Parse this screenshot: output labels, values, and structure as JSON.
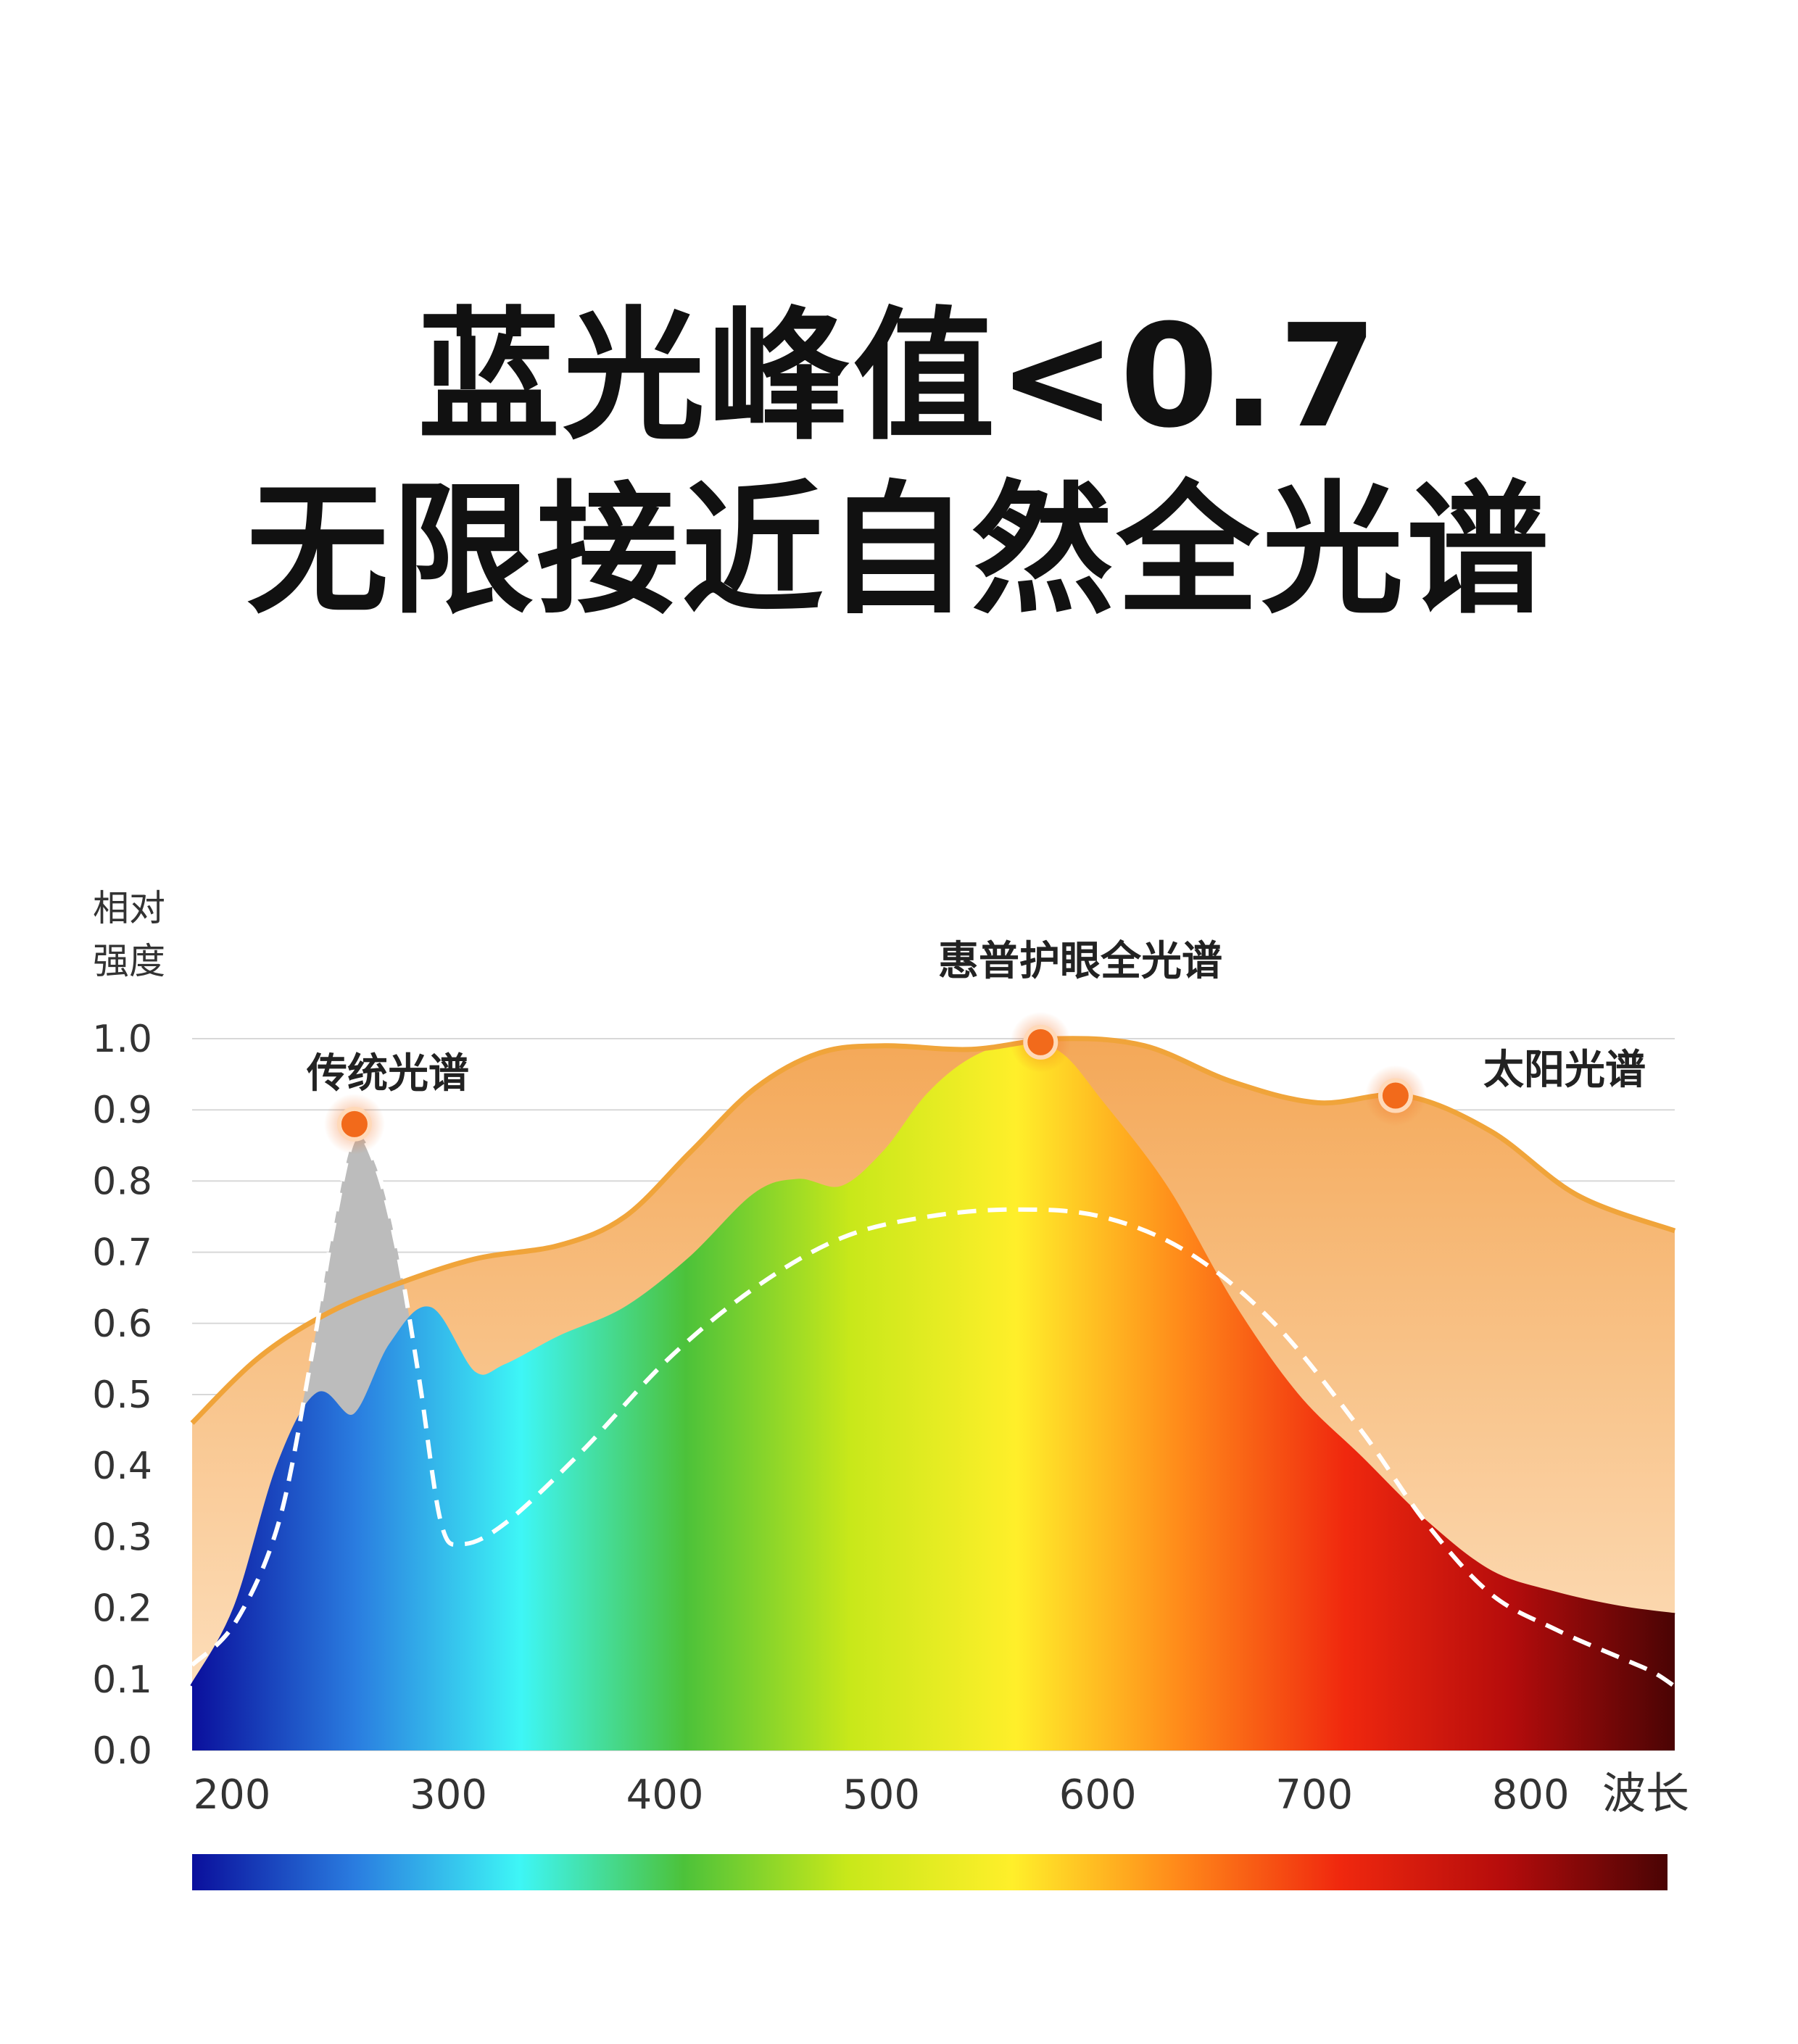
{
  "headline": {
    "line1": "蓝光峰值<0.7",
    "line2": "无限接近自然全光谱"
  },
  "chart_data": {
    "type": "area",
    "ylabel_line1": "相对",
    "ylabel_line2": "强度",
    "xlabel": "波长",
    "yticks": [
      "1.0",
      "0.9",
      "0.8",
      "0.7",
      "0.6",
      "0.5",
      "0.4",
      "0.3",
      "0.2",
      "0.1",
      "0.0"
    ],
    "xticks": [
      "200",
      "300",
      "400",
      "500",
      "600",
      "700",
      "800"
    ],
    "ylim": [
      0,
      1.0
    ],
    "xlim": [
      200,
      885
    ],
    "grid": true,
    "annotations": {
      "full_spectrum": "惠普护眼全光谱",
      "traditional": "传统光谱",
      "sun": "太阳光谱"
    },
    "series": [
      {
        "name": "太阳光谱",
        "color": "#f0a43a",
        "x": [
          200,
          230,
          260,
          290,
          330,
          370,
          400,
          430,
          460,
          490,
          520,
          560,
          600,
          640,
          680,
          720,
          760,
          800,
          840,
          885
        ],
        "y": [
          0.46,
          0.55,
          0.61,
          0.65,
          0.69,
          0.71,
          0.75,
          0.84,
          0.93,
          0.98,
          0.99,
          0.985,
          1.0,
          0.99,
          0.94,
          0.91,
          0.92,
          0.87,
          0.78,
          0.73
        ]
      },
      {
        "name": "惠普护眼全光谱",
        "color": "#d94a1a",
        "x": [
          200,
          220,
          240,
          258,
          275,
          292,
          310,
          330,
          345,
          370,
          400,
          430,
          460,
          480,
          500,
          520,
          540,
          560,
          580,
          600,
          620,
          650,
          680,
          710,
          740,
          770,
          800,
          830,
          860,
          885
        ],
        "y": [
          0.09,
          0.2,
          0.4,
          0.5,
          0.47,
          0.57,
          0.62,
          0.53,
          0.54,
          0.58,
          0.62,
          0.69,
          0.78,
          0.8,
          0.79,
          0.84,
          0.92,
          0.97,
          0.99,
          0.98,
          0.91,
          0.79,
          0.63,
          0.5,
          0.41,
          0.32,
          0.25,
          0.22,
          0.2,
          0.19
        ]
      },
      {
        "name": "传统光谱",
        "color": "#bfbfbf",
        "x": [
          200,
          220,
          240,
          255,
          265,
          275,
          285,
          295,
          305,
          315,
          325,
          345,
          380,
          420,
          460,
          500,
          540,
          580,
          620,
          660,
          700,
          740,
          770,
          800,
          830,
          860,
          875,
          885
        ],
        "y": [
          0.12,
          0.18,
          0.32,
          0.55,
          0.73,
          0.86,
          0.82,
          0.7,
          0.52,
          0.32,
          0.29,
          0.32,
          0.42,
          0.55,
          0.65,
          0.72,
          0.75,
          0.76,
          0.75,
          0.7,
          0.6,
          0.45,
          0.32,
          0.22,
          0.17,
          0.13,
          0.11,
          0.09
        ]
      }
    ],
    "peaks": [
      {
        "series": "传统光谱",
        "x": 275,
        "y": 0.88
      },
      {
        "series": "惠普护眼全光谱",
        "x": 592,
        "y": 0.995
      },
      {
        "series": "太阳光谱",
        "x": 756,
        "y": 0.92
      }
    ],
    "colors": {
      "sun_fill_top": "#f4a858",
      "sun_fill_bottom": "#fde2c2",
      "sun_line": "#f0a43a",
      "gray_fill": "#bcbcbc",
      "dash_line": "#ffffff",
      "peak_dot": "#f26a1b",
      "spectrum": [
        "#0a0f9c",
        "#2a7de0",
        "#3ef6f6",
        "#4cc23a",
        "#c8e81a",
        "#ffef2a",
        "#ff8a1a",
        "#f0280e",
        "#b50c0c",
        "#4a0404"
      ]
    }
  }
}
